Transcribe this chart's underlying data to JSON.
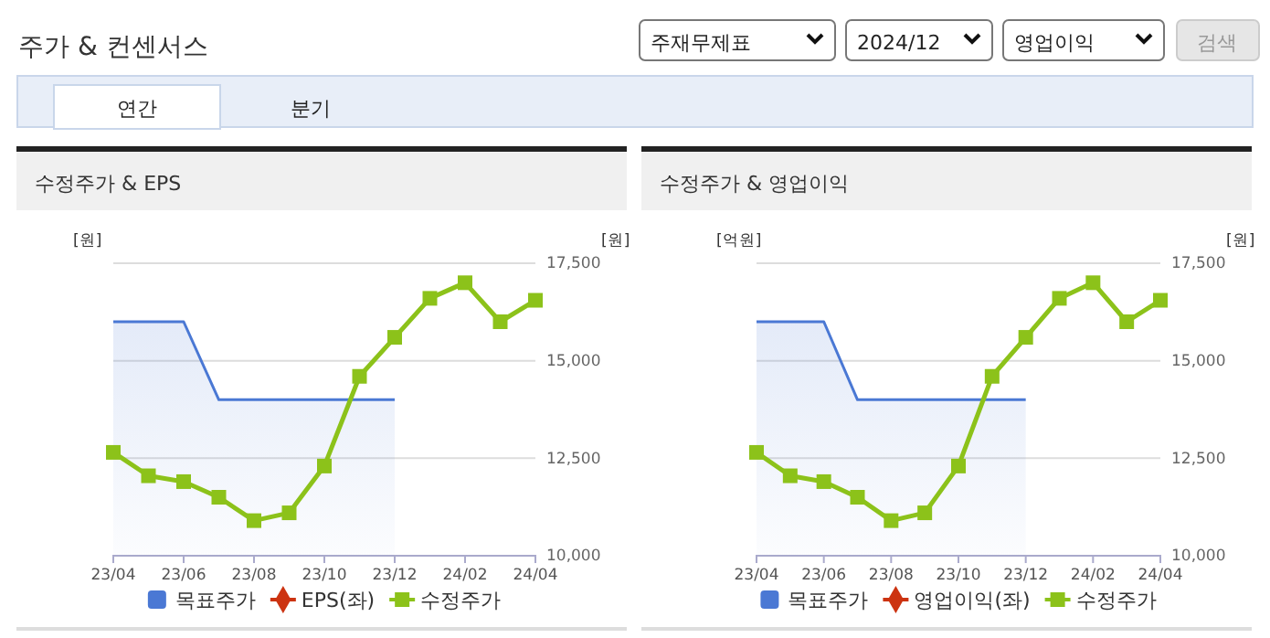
{
  "chart_data": [
    {
      "type": "line",
      "title": "수정주가 & EPS",
      "ylabel": "[원]",
      "y2label": "[원]",
      "annotations": [
        "주가 & 컨센서스",
        "주재무제표",
        "2024/12",
        "영업이익",
        "검색",
        "연간",
        "분기"
      ],
      "categories": [
        "23/04",
        null,
        "23/06",
        null,
        "23/08",
        null,
        "23/10",
        null,
        "23/12",
        null,
        "24/02",
        null,
        "24/04"
      ],
      "series": [
        {
          "name": "목표주가",
          "type": "area",
          "color": "#4a78d4",
          "axis": "y2",
          "marker": "none",
          "values": [
            16000,
            16000,
            16000,
            14000,
            14000,
            14000,
            14000,
            14000,
            14000,
            null,
            null,
            null,
            null
          ]
        },
        {
          "name": "EPS(좌)",
          "color": "#cc3311",
          "marker": "diamond",
          "values": [
            null,
            null,
            null,
            null,
            null,
            null,
            null,
            null,
            null,
            null,
            null,
            null,
            null
          ]
        },
        {
          "name": "수정주가",
          "color": "#8cc21a",
          "axis": "y2",
          "marker": "square",
          "values": [
            12650,
            12050,
            11900,
            11500,
            10900,
            11100,
            12300,
            14600,
            15600,
            16600,
            17000,
            16000,
            16550
          ]
        }
      ],
      "y2lim": [
        10000,
        17500
      ],
      "y2ticks": [
        {
          "value": 10000,
          "label": "10,000"
        },
        {
          "value": 12500,
          "label": "12,500"
        },
        {
          "value": 15000,
          "label": "15,000"
        },
        {
          "value": 17500,
          "label": "17,500"
        }
      ],
      "grid": "y",
      "legend": "bottom"
    },
    {
      "type": "line",
      "title": "수정주가 & 영업이익",
      "ylabel": "[억원]",
      "y2label": "[원]",
      "categories": [
        "23/04",
        null,
        "23/06",
        null,
        "23/08",
        null,
        "23/10",
        null,
        "23/12",
        null,
        "24/02",
        null,
        "24/04"
      ],
      "series": [
        {
          "name": "목표주가",
          "type": "area",
          "color": "#4a78d4",
          "axis": "y2",
          "marker": "none",
          "values": [
            16000,
            16000,
            16000,
            14000,
            14000,
            14000,
            14000,
            14000,
            14000,
            null,
            null,
            null,
            null
          ]
        },
        {
          "name": "영업이익(좌)",
          "color": "#cc3311",
          "marker": "diamond",
          "values": [
            null,
            null,
            null,
            null,
            null,
            null,
            null,
            null,
            null,
            null,
            null,
            null,
            null
          ]
        },
        {
          "name": "수정주가",
          "color": "#8cc21a",
          "axis": "y2",
          "marker": "square",
          "values": [
            12650,
            12050,
            11900,
            11500,
            10900,
            11100,
            12300,
            14600,
            15600,
            16600,
            17000,
            16000,
            16550
          ]
        }
      ],
      "y2lim": [
        10000,
        17500
      ],
      "y2ticks": [
        {
          "value": 10000,
          "label": "10,000"
        },
        {
          "value": 12500,
          "label": "12,500"
        },
        {
          "value": 15000,
          "label": "15,000"
        },
        {
          "value": 17500,
          "label": "17,500"
        }
      ],
      "grid": "y",
      "legend": "bottom"
    }
  ]
}
